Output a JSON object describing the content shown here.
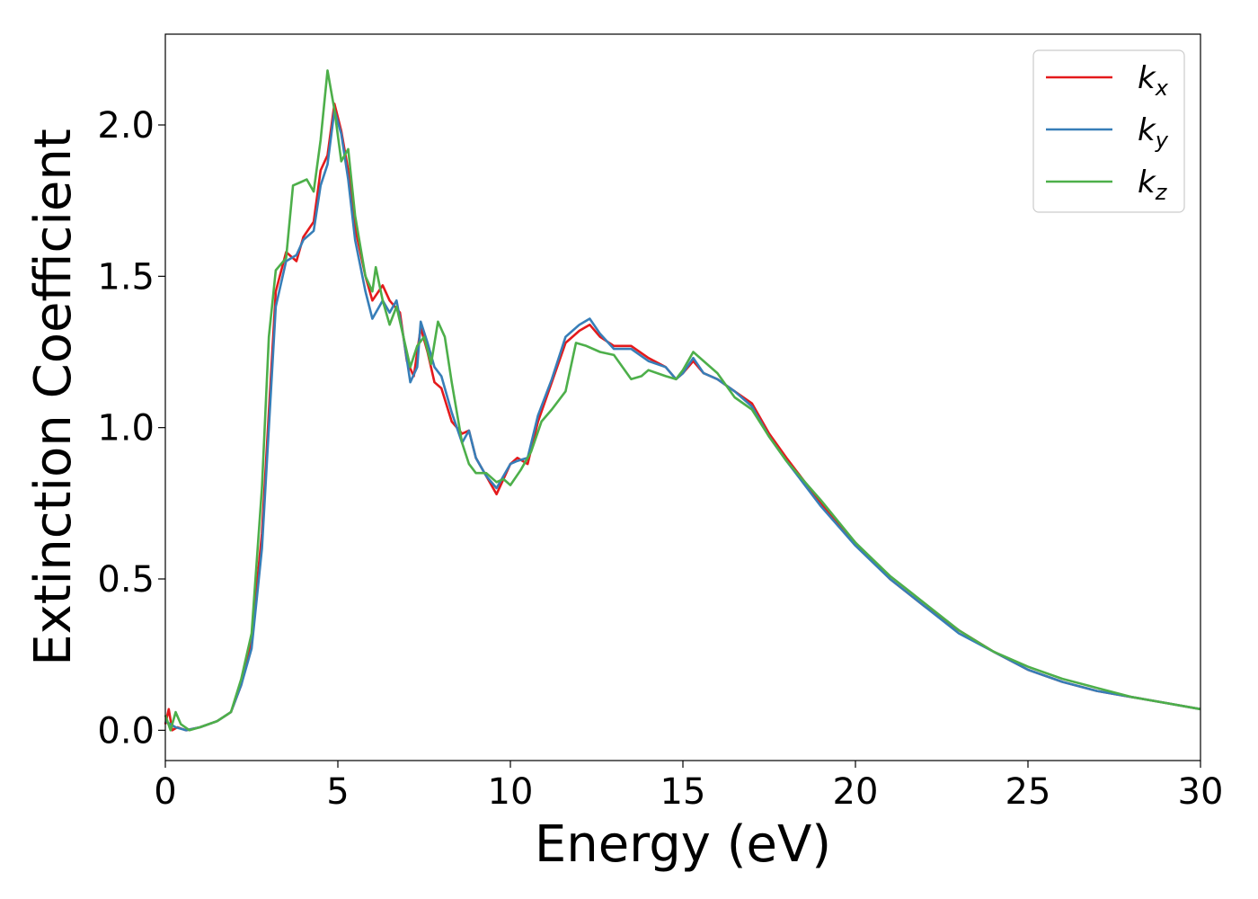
{
  "chart_data": {
    "type": "line",
    "title": "",
    "xlabel": "Energy (eV)",
    "ylabel": "Extinction Coefficient",
    "xlim": [
      0,
      30
    ],
    "ylim": [
      -0.1,
      2.3
    ],
    "xticks": [
      0,
      5,
      10,
      15,
      20,
      25,
      30
    ],
    "xtick_labels": [
      "0",
      "5",
      "10",
      "15",
      "20",
      "25",
      "30"
    ],
    "yticks": [
      0.0,
      0.5,
      1.0,
      1.5,
      2.0
    ],
    "ytick_labels": [
      "0.0",
      "0.5",
      "1.0",
      "1.5",
      "2.0"
    ],
    "grid": false,
    "legend_position": "top-right",
    "series": [
      {
        "name": "k_x",
        "label_base": "k",
        "label_sub": "x",
        "color": "#e41a1c",
        "points": [
          [
            0,
            0.02
          ],
          [
            0.1,
            0.07
          ],
          [
            0.2,
            0.0
          ],
          [
            0.35,
            0.01
          ],
          [
            0.6,
            0.0
          ],
          [
            1.0,
            0.01
          ],
          [
            1.5,
            0.03
          ],
          [
            1.9,
            0.06
          ],
          [
            2.2,
            0.15
          ],
          [
            2.5,
            0.3
          ],
          [
            2.8,
            0.65
          ],
          [
            3.0,
            1.05
          ],
          [
            3.2,
            1.45
          ],
          [
            3.5,
            1.58
          ],
          [
            3.8,
            1.55
          ],
          [
            4.0,
            1.63
          ],
          [
            4.3,
            1.68
          ],
          [
            4.5,
            1.85
          ],
          [
            4.7,
            1.9
          ],
          [
            4.9,
            2.07
          ],
          [
            5.1,
            1.98
          ],
          [
            5.3,
            1.85
          ],
          [
            5.5,
            1.66
          ],
          [
            5.8,
            1.5
          ],
          [
            6.0,
            1.42
          ],
          [
            6.3,
            1.47
          ],
          [
            6.5,
            1.42
          ],
          [
            6.8,
            1.38
          ],
          [
            7.0,
            1.22
          ],
          [
            7.2,
            1.17
          ],
          [
            7.4,
            1.33
          ],
          [
            7.6,
            1.25
          ],
          [
            7.8,
            1.15
          ],
          [
            8.0,
            1.13
          ],
          [
            8.3,
            1.02
          ],
          [
            8.6,
            0.98
          ],
          [
            8.8,
            0.99
          ],
          [
            9.0,
            0.9
          ],
          [
            9.3,
            0.84
          ],
          [
            9.6,
            0.78
          ],
          [
            9.8,
            0.83
          ],
          [
            10.0,
            0.88
          ],
          [
            10.2,
            0.9
          ],
          [
            10.5,
            0.88
          ],
          [
            10.8,
            1.02
          ],
          [
            11.2,
            1.15
          ],
          [
            11.6,
            1.28
          ],
          [
            12.0,
            1.32
          ],
          [
            12.3,
            1.34
          ],
          [
            12.6,
            1.3
          ],
          [
            13.0,
            1.27
          ],
          [
            13.5,
            1.27
          ],
          [
            14.0,
            1.23
          ],
          [
            14.5,
            1.2
          ],
          [
            14.8,
            1.16
          ],
          [
            15.0,
            1.18
          ],
          [
            15.3,
            1.22
          ],
          [
            15.6,
            1.18
          ],
          [
            16.0,
            1.16
          ],
          [
            16.5,
            1.12
          ],
          [
            17.0,
            1.08
          ],
          [
            17.5,
            0.98
          ],
          [
            18.0,
            0.9
          ],
          [
            19.0,
            0.75
          ],
          [
            20.0,
            0.62
          ],
          [
            21.0,
            0.5
          ],
          [
            22.0,
            0.41
          ],
          [
            23.0,
            0.33
          ],
          [
            24.0,
            0.26
          ],
          [
            25.0,
            0.2
          ],
          [
            26.0,
            0.16
          ],
          [
            27.0,
            0.13
          ],
          [
            28.0,
            0.11
          ],
          [
            29.0,
            0.09
          ],
          [
            30.0,
            0.07
          ]
        ]
      },
      {
        "name": "k_y",
        "label_base": "k",
        "label_sub": "y",
        "color": "#377eb8",
        "points": [
          [
            0,
            0.03
          ],
          [
            0.15,
            0.02
          ],
          [
            0.3,
            0.01
          ],
          [
            0.6,
            0.0
          ],
          [
            1.0,
            0.01
          ],
          [
            1.5,
            0.03
          ],
          [
            1.9,
            0.06
          ],
          [
            2.2,
            0.15
          ],
          [
            2.5,
            0.27
          ],
          [
            2.8,
            0.6
          ],
          [
            3.0,
            1.0
          ],
          [
            3.2,
            1.4
          ],
          [
            3.5,
            1.55
          ],
          [
            3.8,
            1.57
          ],
          [
            4.0,
            1.62
          ],
          [
            4.3,
            1.65
          ],
          [
            4.5,
            1.8
          ],
          [
            4.7,
            1.87
          ],
          [
            4.9,
            2.05
          ],
          [
            5.1,
            1.97
          ],
          [
            5.3,
            1.82
          ],
          [
            5.5,
            1.62
          ],
          [
            5.8,
            1.45
          ],
          [
            6.0,
            1.36
          ],
          [
            6.3,
            1.42
          ],
          [
            6.5,
            1.38
          ],
          [
            6.7,
            1.42
          ],
          [
            6.9,
            1.3
          ],
          [
            7.1,
            1.15
          ],
          [
            7.3,
            1.2
          ],
          [
            7.4,
            1.35
          ],
          [
            7.6,
            1.28
          ],
          [
            7.8,
            1.2
          ],
          [
            8.0,
            1.17
          ],
          [
            8.3,
            1.05
          ],
          [
            8.6,
            0.95
          ],
          [
            8.8,
            0.99
          ],
          [
            9.0,
            0.9
          ],
          [
            9.3,
            0.84
          ],
          [
            9.6,
            0.8
          ],
          [
            9.8,
            0.84
          ],
          [
            10.0,
            0.88
          ],
          [
            10.2,
            0.89
          ],
          [
            10.5,
            0.9
          ],
          [
            10.8,
            1.04
          ],
          [
            11.2,
            1.16
          ],
          [
            11.6,
            1.3
          ],
          [
            12.0,
            1.34
          ],
          [
            12.3,
            1.36
          ],
          [
            12.6,
            1.31
          ],
          [
            13.0,
            1.26
          ],
          [
            13.5,
            1.26
          ],
          [
            14.0,
            1.22
          ],
          [
            14.5,
            1.2
          ],
          [
            14.8,
            1.16
          ],
          [
            15.0,
            1.18
          ],
          [
            15.3,
            1.23
          ],
          [
            15.6,
            1.18
          ],
          [
            16.0,
            1.16
          ],
          [
            16.5,
            1.12
          ],
          [
            17.0,
            1.07
          ],
          [
            17.5,
            0.97
          ],
          [
            18.0,
            0.89
          ],
          [
            19.0,
            0.74
          ],
          [
            20.0,
            0.61
          ],
          [
            21.0,
            0.5
          ],
          [
            22.0,
            0.41
          ],
          [
            23.0,
            0.32
          ],
          [
            24.0,
            0.26
          ],
          [
            25.0,
            0.2
          ],
          [
            26.0,
            0.16
          ],
          [
            27.0,
            0.13
          ],
          [
            28.0,
            0.11
          ],
          [
            29.0,
            0.09
          ],
          [
            30.0,
            0.07
          ]
        ]
      },
      {
        "name": "k_z",
        "label_base": "k",
        "label_sub": "z",
        "color": "#4daf4a",
        "points": [
          [
            0,
            0.05
          ],
          [
            0.15,
            0.0
          ],
          [
            0.3,
            0.06
          ],
          [
            0.45,
            0.02
          ],
          [
            0.7,
            0.0
          ],
          [
            1.0,
            0.01
          ],
          [
            1.5,
            0.03
          ],
          [
            1.9,
            0.06
          ],
          [
            2.2,
            0.17
          ],
          [
            2.5,
            0.32
          ],
          [
            2.8,
            0.8
          ],
          [
            3.0,
            1.3
          ],
          [
            3.2,
            1.52
          ],
          [
            3.5,
            1.56
          ],
          [
            3.7,
            1.8
          ],
          [
            3.9,
            1.81
          ],
          [
            4.1,
            1.82
          ],
          [
            4.3,
            1.78
          ],
          [
            4.5,
            1.95
          ],
          [
            4.7,
            2.18
          ],
          [
            4.9,
            2.05
          ],
          [
            5.1,
            1.88
          ],
          [
            5.3,
            1.92
          ],
          [
            5.5,
            1.7
          ],
          [
            5.8,
            1.5
          ],
          [
            6.0,
            1.45
          ],
          [
            6.1,
            1.53
          ],
          [
            6.3,
            1.42
          ],
          [
            6.5,
            1.34
          ],
          [
            6.7,
            1.4
          ],
          [
            6.9,
            1.3
          ],
          [
            7.1,
            1.2
          ],
          [
            7.3,
            1.27
          ],
          [
            7.5,
            1.3
          ],
          [
            7.7,
            1.21
          ],
          [
            7.9,
            1.35
          ],
          [
            8.1,
            1.3
          ],
          [
            8.3,
            1.15
          ],
          [
            8.6,
            0.95
          ],
          [
            8.8,
            0.88
          ],
          [
            9.0,
            0.85
          ],
          [
            9.3,
            0.85
          ],
          [
            9.6,
            0.82
          ],
          [
            9.8,
            0.83
          ],
          [
            10.0,
            0.81
          ],
          [
            10.3,
            0.86
          ],
          [
            10.6,
            0.92
          ],
          [
            10.9,
            1.02
          ],
          [
            11.2,
            1.06
          ],
          [
            11.6,
            1.12
          ],
          [
            11.9,
            1.28
          ],
          [
            12.2,
            1.27
          ],
          [
            12.6,
            1.25
          ],
          [
            13.0,
            1.24
          ],
          [
            13.5,
            1.16
          ],
          [
            13.8,
            1.17
          ],
          [
            14.0,
            1.19
          ],
          [
            14.5,
            1.17
          ],
          [
            14.8,
            1.16
          ],
          [
            15.0,
            1.19
          ],
          [
            15.3,
            1.25
          ],
          [
            15.6,
            1.22
          ],
          [
            16.0,
            1.18
          ],
          [
            16.5,
            1.1
          ],
          [
            17.0,
            1.06
          ],
          [
            17.5,
            0.97
          ],
          [
            18.0,
            0.89
          ],
          [
            19.0,
            0.76
          ],
          [
            20.0,
            0.62
          ],
          [
            21.0,
            0.51
          ],
          [
            22.0,
            0.42
          ],
          [
            23.0,
            0.33
          ],
          [
            24.0,
            0.26
          ],
          [
            25.0,
            0.21
          ],
          [
            26.0,
            0.17
          ],
          [
            27.0,
            0.14
          ],
          [
            28.0,
            0.11
          ],
          [
            29.0,
            0.09
          ],
          [
            30.0,
            0.07
          ]
        ]
      }
    ]
  }
}
